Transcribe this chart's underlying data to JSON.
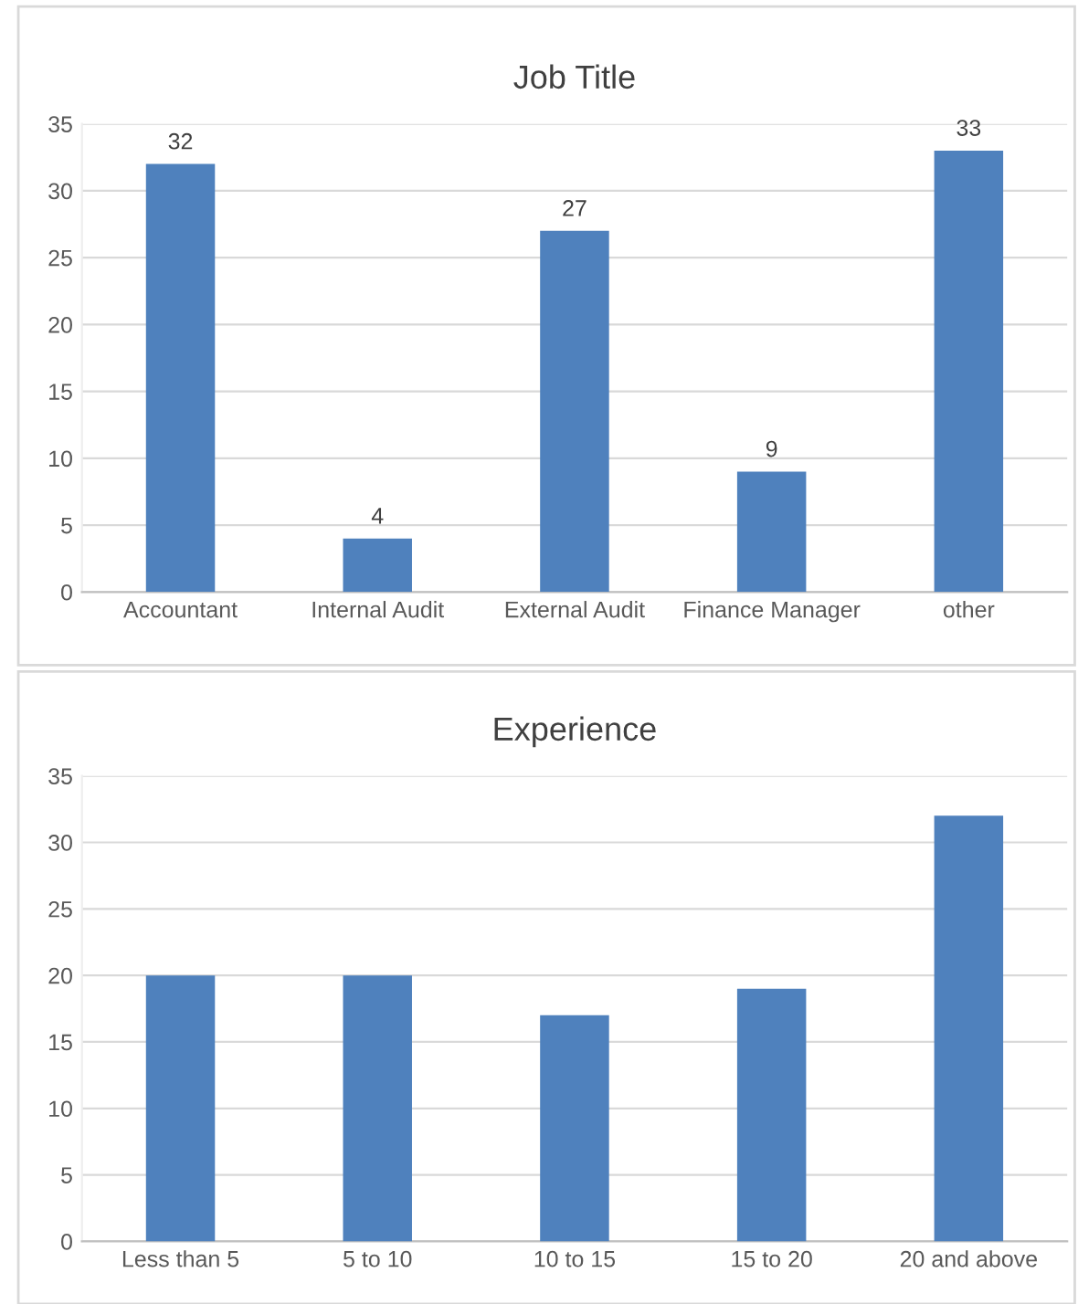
{
  "chart_data": [
    {
      "type": "bar",
      "title": "Job Title",
      "categories": [
        "Accountant",
        "Internal Audit",
        "External Audit",
        "Finance Manager",
        "other"
      ],
      "values": [
        32,
        4,
        27,
        9,
        33
      ],
      "color": "#4f81bd",
      "ylim": [
        0,
        35
      ],
      "yticks": [
        0,
        5,
        10,
        15,
        20,
        25,
        30,
        35
      ],
      "grid": "y",
      "data_labels": true
    },
    {
      "type": "bar",
      "title": "Experience",
      "categories": [
        "Less than 5",
        "5 to 10",
        "10 to 15",
        "15 to 20",
        "20 and above"
      ],
      "values": [
        20,
        20,
        17,
        19,
        32
      ],
      "color": "#4f81bd",
      "ylim": [
        0,
        35
      ],
      "yticks": [
        0,
        5,
        10,
        15,
        20,
        25,
        30,
        35
      ],
      "grid": "y"
    }
  ]
}
